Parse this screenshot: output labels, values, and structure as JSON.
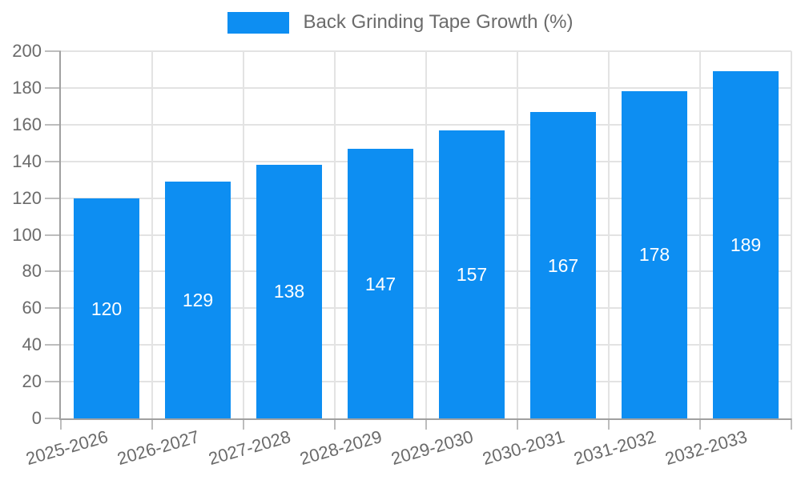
{
  "chart_data": {
    "type": "bar",
    "title": "Back Grinding Tape Growth (%)",
    "legend_position": "top",
    "categories": [
      "2025-2026",
      "2026-2027",
      "2027-2028",
      "2028-2029",
      "2029-2030",
      "2030-2031",
      "2031-2032",
      "2032-2033"
    ],
    "series": [
      {
        "name": "Back Grinding Tape Growth (%)",
        "values": [
          120,
          129,
          138,
          147,
          157,
          167,
          178,
          189
        ]
      }
    ],
    "xlabel": "",
    "ylabel": "",
    "ylim": [
      0,
      200
    ],
    "ytick_step": 20,
    "yticks": [
      0,
      20,
      40,
      60,
      80,
      100,
      120,
      140,
      160,
      180,
      200
    ],
    "grid": true,
    "value_label_position": "inside-center",
    "colors": {
      "bar": "#0d8ef2",
      "grid": "#e3e3e3",
      "axis": "#a0a0a0",
      "tick": "#bdbdbd",
      "text": "#6b6b6b",
      "value_label": "#ffffff",
      "background": "#ffffff"
    }
  }
}
